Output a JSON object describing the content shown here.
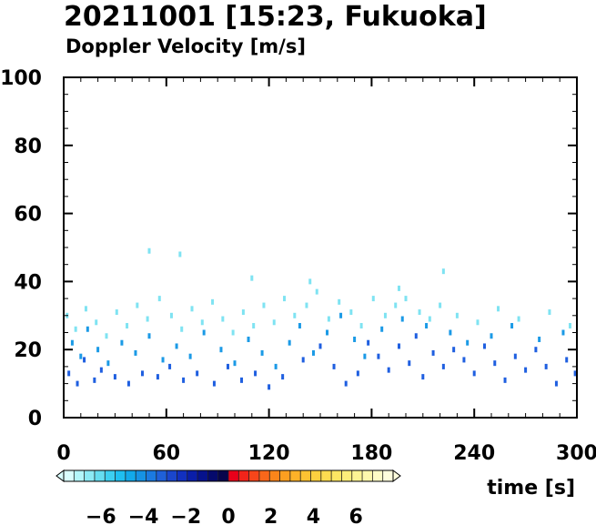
{
  "chart_data": {
    "type": "scatter",
    "title": "20211001 [15:23, Fukuoka]",
    "subtitle": "Doppler Velocity [m/s]",
    "xlabel": "time [s]",
    "ylabel": "",
    "xlim": [
      0,
      300
    ],
    "ylim": [
      0,
      100
    ],
    "xticks": [
      "0",
      "60",
      "120",
      "180",
      "240",
      "300"
    ],
    "yticks": [
      "0",
      "20",
      "40",
      "60",
      "80",
      "100"
    ],
    "grid": false,
    "series": [
      {
        "value_range_m_s": [
          -2.5,
          -1.5
        ],
        "color": "#1f5fe0",
        "points": [
          [
            3,
            13
          ],
          [
            8,
            10
          ],
          [
            12,
            17
          ],
          [
            18,
            11
          ],
          [
            22,
            14
          ],
          [
            30,
            12
          ],
          [
            38,
            10
          ],
          [
            46,
            13
          ],
          [
            55,
            12
          ],
          [
            62,
            15
          ],
          [
            70,
            11
          ],
          [
            78,
            13
          ],
          [
            88,
            10
          ],
          [
            96,
            15
          ],
          [
            104,
            11
          ],
          [
            112,
            13
          ],
          [
            120,
            9
          ],
          [
            128,
            12
          ],
          [
            140,
            17
          ],
          [
            150,
            21
          ],
          [
            158,
            15
          ],
          [
            165,
            10
          ],
          [
            172,
            13
          ],
          [
            178,
            22
          ],
          [
            184,
            18
          ],
          [
            190,
            14
          ],
          [
            196,
            21
          ],
          [
            202,
            16
          ],
          [
            206,
            24
          ],
          [
            210,
            12
          ],
          [
            216,
            19
          ],
          [
            222,
            15
          ],
          [
            228,
            20
          ],
          [
            234,
            17
          ],
          [
            240,
            13
          ],
          [
            246,
            21
          ],
          [
            252,
            16
          ],
          [
            258,
            11
          ],
          [
            264,
            18
          ],
          [
            270,
            14
          ],
          [
            276,
            20
          ],
          [
            282,
            15
          ],
          [
            288,
            10
          ],
          [
            294,
            17
          ],
          [
            299,
            13
          ]
        ]
      },
      {
        "value_range_m_s": [
          -4.5,
          -3.5
        ],
        "color": "#1b9ae6",
        "points": [
          [
            5,
            22
          ],
          [
            10,
            18
          ],
          [
            14,
            26
          ],
          [
            20,
            20
          ],
          [
            26,
            16
          ],
          [
            34,
            22
          ],
          [
            42,
            19
          ],
          [
            50,
            24
          ],
          [
            58,
            17
          ],
          [
            66,
            21
          ],
          [
            74,
            18
          ],
          [
            82,
            25
          ],
          [
            92,
            20
          ],
          [
            100,
            16
          ],
          [
            108,
            23
          ],
          [
            116,
            19
          ],
          [
            124,
            15
          ],
          [
            132,
            22
          ],
          [
            138,
            27
          ],
          [
            146,
            19
          ],
          [
            154,
            25
          ],
          [
            162,
            30
          ],
          [
            170,
            23
          ],
          [
            176,
            18
          ],
          [
            186,
            26
          ],
          [
            198,
            29
          ],
          [
            212,
            27
          ],
          [
            226,
            25
          ],
          [
            236,
            22
          ],
          [
            250,
            24
          ],
          [
            262,
            27
          ],
          [
            278,
            23
          ],
          [
            292,
            25
          ]
        ]
      },
      {
        "value_range_m_s": [
          -6.5,
          -5.5
        ],
        "color": "#7fe3f2",
        "points": [
          [
            2,
            30
          ],
          [
            7,
            26
          ],
          [
            13,
            32
          ],
          [
            19,
            28
          ],
          [
            25,
            24
          ],
          [
            31,
            31
          ],
          [
            37,
            27
          ],
          [
            43,
            33
          ],
          [
            49,
            29
          ],
          [
            56,
            35
          ],
          [
            63,
            30
          ],
          [
            69,
            26
          ],
          [
            75,
            32
          ],
          [
            81,
            28
          ],
          [
            87,
            34
          ],
          [
            93,
            29
          ],
          [
            99,
            25
          ],
          [
            105,
            31
          ],
          [
            111,
            27
          ],
          [
            117,
            33
          ],
          [
            123,
            28
          ],
          [
            129,
            35
          ],
          [
            135,
            30
          ],
          [
            142,
            33
          ],
          [
            148,
            37
          ],
          [
            155,
            29
          ],
          [
            161,
            34
          ],
          [
            168,
            31
          ],
          [
            174,
            27
          ],
          [
            181,
            35
          ],
          [
            188,
            30
          ],
          [
            194,
            33
          ],
          [
            200,
            35
          ],
          [
            208,
            31
          ],
          [
            214,
            29
          ],
          [
            220,
            33
          ],
          [
            230,
            30
          ],
          [
            242,
            28
          ],
          [
            254,
            32
          ],
          [
            266,
            29
          ],
          [
            284,
            31
          ],
          [
            296,
            27
          ],
          [
            50,
            49
          ],
          [
            68,
            48
          ],
          [
            110,
            41
          ],
          [
            144,
            40
          ],
          [
            222,
            43
          ],
          [
            196,
            38
          ]
        ]
      }
    ]
  },
  "colorbar": {
    "label_text": "Doppler Velocity [m/s]",
    "tick_labels": [
      "−6",
      "−4",
      "−2",
      "0",
      "2",
      "4",
      "6"
    ],
    "tick_values": [
      -6,
      -4,
      -2,
      0,
      2,
      4,
      6
    ],
    "range": [
      -7.75,
      7.75
    ],
    "colors": [
      "#d9fdfd",
      "#b3f6fa",
      "#8ceaf5",
      "#66ddf0",
      "#3dcff0",
      "#1fbff0",
      "#12a9ea",
      "#1692e4",
      "#1b7ae0",
      "#1f60d8",
      "#1a46cc",
      "#1230bf",
      "#0a1ea8",
      "#06128c",
      "#050a6c",
      "#07054c",
      "#e8001a",
      "#f2241a",
      "#f7461a",
      "#fa671a",
      "#fb851a",
      "#fc9f20",
      "#fdb228",
      "#fdc232",
      "#fdd03f",
      "#fddc50",
      "#fde663",
      "#fdee7a",
      "#fdf494",
      "#fdf8ad",
      "#fefbc6",
      "#fefddd"
    ]
  }
}
